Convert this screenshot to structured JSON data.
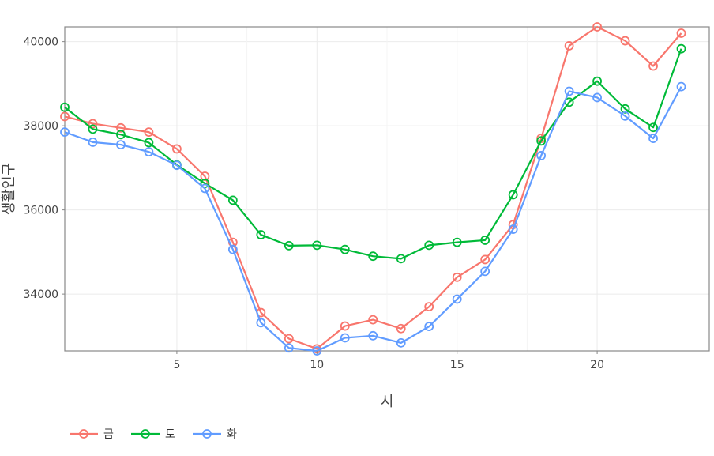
{
  "chart_data": {
    "type": "line",
    "xlabel": "시",
    "ylabel": "생활인구",
    "xlim": [
      1,
      24
    ],
    "ylim": [
      32650,
      40350
    ],
    "xticks": [
      5,
      10,
      15,
      20
    ],
    "yticks": [
      34000,
      36000,
      38000,
      40000
    ],
    "ytick_labels": [
      "34000",
      "36000",
      "38000",
      "40000"
    ],
    "xtick_labels": [
      "5",
      "10",
      "15",
      "20"
    ],
    "grid": true,
    "legend_position": "bottom-left",
    "x": [
      1,
      2,
      3,
      4,
      5,
      6,
      7,
      8,
      9,
      10,
      11,
      12,
      13,
      14,
      15,
      16,
      17,
      18,
      19,
      20,
      21,
      22,
      23
    ],
    "series": [
      {
        "name": "금",
        "color": "#F8766D",
        "values": [
          38220,
          38050,
          37950,
          37850,
          37450,
          36800,
          35230,
          33560,
          32940,
          32700,
          33240,
          33390,
          33180,
          33700,
          34400,
          34820,
          35650,
          37700,
          39900,
          40350,
          40020,
          39420,
          40200
        ]
      },
      {
        "name": "토",
        "color": "#00BA38",
        "values": [
          38440,
          37920,
          37790,
          37600,
          37070,
          36630,
          36230,
          35410,
          35150,
          35160,
          35060,
          34900,
          34840,
          35160,
          35230,
          35280,
          36360,
          37640,
          38560,
          39060,
          38400,
          37960,
          39830
        ]
      },
      {
        "name": "화",
        "color": "#619CFF",
        "values": [
          37850,
          37610,
          37550,
          37380,
          37060,
          36510,
          35060,
          33320,
          32720,
          32650,
          32960,
          33010,
          32840,
          33230,
          33880,
          34540,
          35540,
          37290,
          38820,
          38670,
          38230,
          37700,
          38930
        ]
      }
    ]
  }
}
